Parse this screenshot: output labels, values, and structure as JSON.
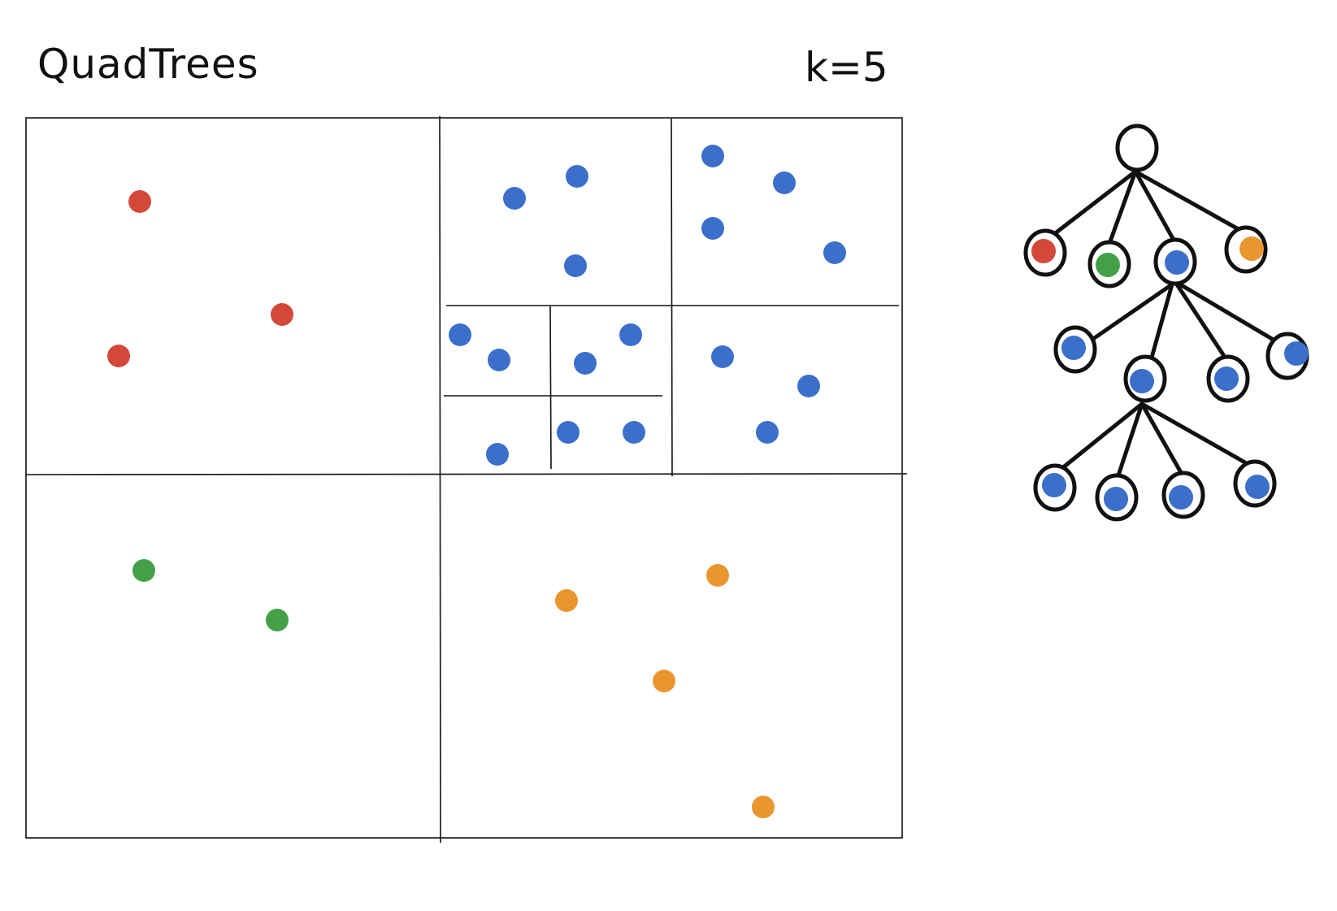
{
  "title": "QuadTrees",
  "k_label": "k=5",
  "colors": {
    "red": "#d4483a",
    "green": "#43a047",
    "blue": "#3b6fca",
    "orange": "#e99630",
    "stroke": "#111111"
  },
  "tree": {
    "root": "empty",
    "level1": [
      "red",
      "green",
      "blue",
      "orange"
    ],
    "level2": [
      "blue",
      "blue",
      "blue",
      "blue"
    ],
    "level3": [
      "blue",
      "blue",
      "blue",
      "blue"
    ]
  }
}
